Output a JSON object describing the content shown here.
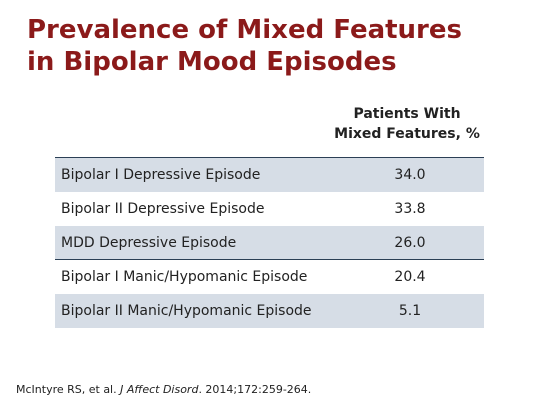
{
  "slide": {
    "title_line1": "Prevalence of Mixed Features",
    "title_line2": "in Bipolar Mood Episodes",
    "column_header_line1": "Patients With",
    "column_header_line2": "Mixed Features, %",
    "rows": [
      {
        "label": "Bipolar I Depressive Episode",
        "value": "34.0"
      },
      {
        "label": "Bipolar II Depressive Episode",
        "value": "33.8"
      },
      {
        "label": "MDD Depressive Episode",
        "value": "26.0"
      },
      {
        "label": "Bipolar I Manic/Hypomanic Episode",
        "value": "20.4"
      },
      {
        "label": "Bipolar II Manic/Hypomanic Episode",
        "value": "5.1"
      }
    ],
    "citation": {
      "authors": "McIntyre RS, et al. ",
      "journal": "J Affect Disord",
      "details": ". 2014;172:259-264."
    },
    "colors": {
      "title": "#8b1a1a",
      "row_shade": "#d6dde6",
      "rule": "#2b3f55"
    }
  }
}
